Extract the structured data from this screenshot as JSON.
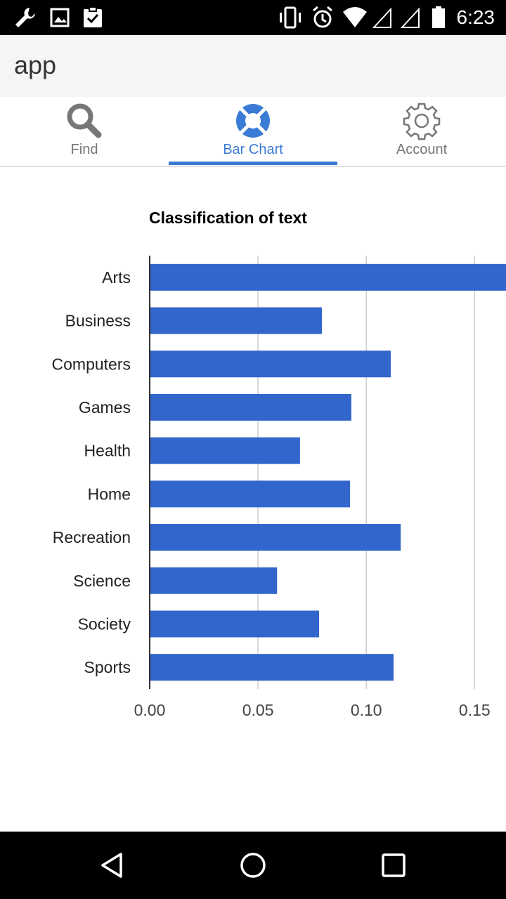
{
  "status_bar": {
    "time": "6:23",
    "left_icons": [
      "wrench-icon",
      "image-icon",
      "clipboard-check-icon"
    ],
    "right_icons": [
      "vibrate-icon",
      "alarm-icon",
      "wifi-icon",
      "signal-icon",
      "signal-icon",
      "battery-icon"
    ]
  },
  "app_bar": {
    "title": "app"
  },
  "tabs": [
    {
      "label": "Find",
      "icon": "search-icon",
      "active": false
    },
    {
      "label": "Bar Chart",
      "icon": "lifebuoy-icon",
      "active": true
    },
    {
      "label": "Account",
      "icon": "gear-icon",
      "active": false
    }
  ],
  "colors": {
    "accent": "#3a7bd5",
    "bar": "#3366cc"
  },
  "chart_data": {
    "type": "bar",
    "orientation": "horizontal",
    "title": "Classification of text",
    "categories": [
      "Arts",
      "Business",
      "Computers",
      "Games",
      "Health",
      "Home",
      "Recreation",
      "Science",
      "Society",
      "Sports"
    ],
    "values": [
      0.17,
      0.0795,
      0.1113,
      0.0931,
      0.0694,
      0.0925,
      0.1159,
      0.0588,
      0.0782,
      0.1126
    ],
    "xticks": [
      "0.00",
      "0.05",
      "0.10",
      "0.15"
    ],
    "xlim": [
      0,
      0.1645
    ],
    "grid": true,
    "xlabel": "",
    "ylabel": ""
  },
  "nav_bar": {
    "buttons": [
      "back-icon",
      "home-icon",
      "recents-icon"
    ]
  }
}
